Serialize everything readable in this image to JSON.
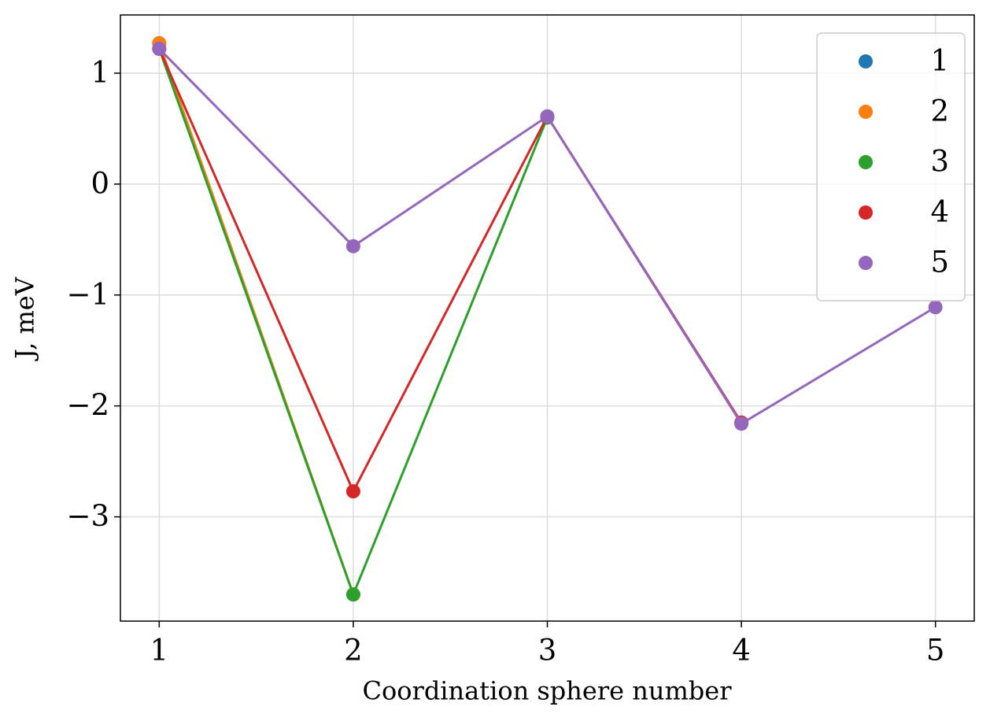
{
  "chart_data": {
    "type": "line",
    "xlabel": "Coordination sphere number",
    "ylabel": "J, meV",
    "xlim": [
      0.8,
      5.2
    ],
    "ylim": [
      -3.94,
      1.525
    ],
    "xticks": [
      1,
      2,
      3,
      4,
      5
    ],
    "yticks": [
      {
        "value": -3,
        "label": "−3"
      },
      {
        "value": -2,
        "label": "−2"
      },
      {
        "value": -1,
        "label": "−1"
      },
      0,
      1
    ],
    "grid": true,
    "legend": "upper right",
    "series": [
      {
        "name": "1",
        "color": "#1f77b4",
        "x": [
          1
        ],
        "values": [
          1.27
        ]
      },
      {
        "name": "2",
        "color": "#ff7f0e",
        "x": [
          1,
          2
        ],
        "values": [
          1.27,
          -3.7
        ]
      },
      {
        "name": "3",
        "color": "#2ca02c",
        "x": [
          1,
          2,
          3
        ],
        "values": [
          1.22,
          -3.7,
          0.6
        ]
      },
      {
        "name": "4",
        "color": "#d62728",
        "x": [
          1,
          2,
          3,
          4
        ],
        "values": [
          1.22,
          -2.77,
          0.61,
          -2.15
        ]
      },
      {
        "name": "5",
        "color": "#9467bd",
        "x": [
          1,
          2,
          3,
          4,
          5
        ],
        "values": [
          1.22,
          -0.56,
          0.61,
          -2.16,
          -1.11
        ]
      }
    ]
  }
}
